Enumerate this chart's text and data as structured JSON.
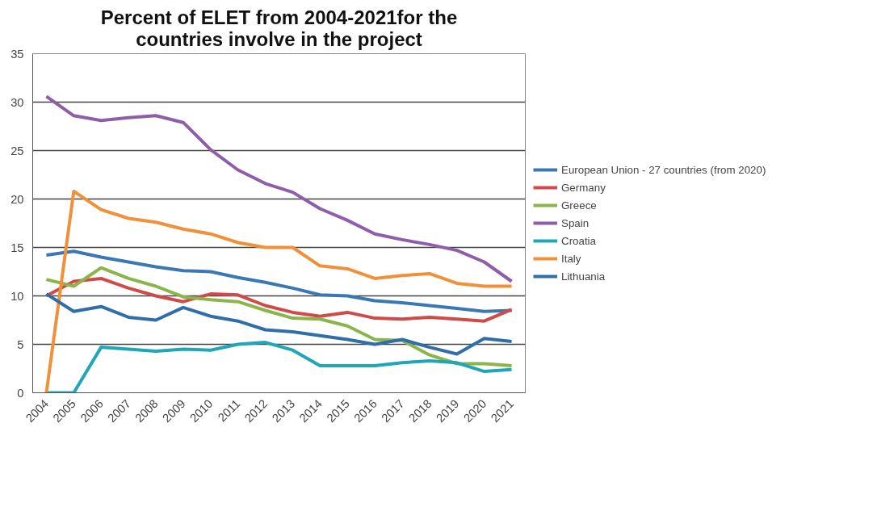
{
  "chart_data": {
    "type": "line",
    "title": "Percent of ELET from 2004-2021for the countries involve in the project",
    "categories": [
      "2004",
      "2005",
      "2006",
      "2007",
      "2008",
      "2009",
      "2010",
      "2011",
      "2012",
      "2013",
      "2014",
      "2015",
      "2016",
      "2017",
      "2018",
      "2019",
      "2020",
      "2021"
    ],
    "series": [
      {
        "name": "European Union - 27 countries (from 2020)",
        "color": "#3a78b5",
        "values": [
          14.2,
          14.6,
          14.0,
          13.5,
          13.0,
          12.6,
          12.5,
          11.9,
          11.4,
          10.8,
          10.1,
          10.0,
          9.5,
          9.3,
          9.0,
          8.7,
          8.4,
          8.5
        ]
      },
      {
        "name": "Germany",
        "color": "#d04a4a",
        "values": [
          10.0,
          11.5,
          11.8,
          10.8,
          10.0,
          9.4,
          10.2,
          10.1,
          9.0,
          8.3,
          7.9,
          8.3,
          7.7,
          7.6,
          7.8,
          7.6,
          7.4,
          8.6
        ]
      },
      {
        "name": "Greece",
        "color": "#8ab54a",
        "values": [
          11.7,
          11.0,
          12.9,
          11.8,
          11.0,
          9.9,
          9.6,
          9.4,
          8.5,
          7.7,
          7.6,
          6.9,
          5.5,
          5.4,
          3.9,
          3.0,
          3.0,
          2.8
        ]
      },
      {
        "name": "Spain",
        "color": "#8e5ea8",
        "values": [
          30.6,
          28.6,
          28.1,
          28.4,
          28.6,
          27.9,
          25.1,
          23.0,
          21.6,
          20.7,
          19.0,
          17.8,
          16.4,
          15.8,
          15.3,
          14.7,
          13.5,
          11.5
        ]
      },
      {
        "name": "Croatia",
        "color": "#1fa6b8",
        "values": [
          0.0,
          0.0,
          4.7,
          4.5,
          4.3,
          4.5,
          4.4,
          5.0,
          5.2,
          4.4,
          2.8,
          2.8,
          2.8,
          3.1,
          3.3,
          3.1,
          2.2,
          2.4
        ]
      },
      {
        "name": "Italy",
        "color": "#f0913a",
        "values": [
          0.0,
          20.8,
          18.9,
          18.0,
          17.6,
          16.9,
          16.4,
          15.5,
          15.0,
          15.0,
          13.1,
          12.8,
          11.8,
          12.1,
          12.3,
          11.3,
          11.0,
          11.0
        ]
      },
      {
        "name": "Lithuania",
        "color": "#2f6ea8",
        "values": [
          10.2,
          8.4,
          8.9,
          7.8,
          7.5,
          8.8,
          7.9,
          7.4,
          6.5,
          6.3,
          5.9,
          5.5,
          5.0,
          5.5,
          4.7,
          4.0,
          5.6,
          5.3
        ]
      }
    ],
    "ylim": [
      0,
      35
    ],
    "yticks": [
      0,
      5,
      10,
      15,
      20,
      25,
      30,
      35
    ],
    "grid": "y",
    "legend": "right",
    "marker": "none",
    "line_style": "solid"
  }
}
